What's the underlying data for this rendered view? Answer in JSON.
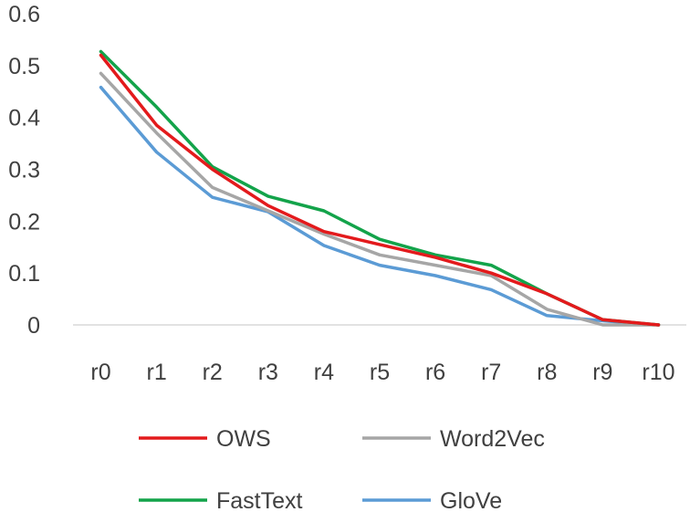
{
  "chart_data": {
    "type": "line",
    "categories": [
      "r0",
      "r1",
      "r2",
      "r3",
      "r4",
      "r5",
      "r6",
      "r7",
      "r8",
      "r9",
      "r10"
    ],
    "ylim": [
      0,
      0.6
    ],
    "yticks": [
      "0",
      "0.1",
      "0.2",
      "0.3",
      "0.4",
      "0.5",
      "0.6"
    ],
    "grid": false,
    "legend_position": "bottom",
    "series": [
      {
        "name": "OWS",
        "color": "#e31a1c",
        "values": [
          0.52,
          0.385,
          0.3,
          0.23,
          0.18,
          0.155,
          0.13,
          0.1,
          0.06,
          0.01,
          0.0
        ]
      },
      {
        "name": "Word2Vec",
        "color": "#a6a6a6",
        "values": [
          0.485,
          0.37,
          0.265,
          0.22,
          0.175,
          0.135,
          0.115,
          0.095,
          0.03,
          0.0,
          0.0
        ]
      },
      {
        "name": "FastText",
        "color": "#13a34a",
        "values": [
          0.527,
          0.42,
          0.305,
          0.248,
          0.22,
          0.165,
          0.135,
          0.115,
          0.06,
          0.01,
          0.0
        ]
      },
      {
        "name": "GloVe",
        "color": "#5b9bd5",
        "values": [
          0.458,
          0.333,
          0.246,
          0.218,
          0.153,
          0.115,
          0.095,
          0.068,
          0.018,
          0.008,
          0.0
        ]
      }
    ]
  }
}
